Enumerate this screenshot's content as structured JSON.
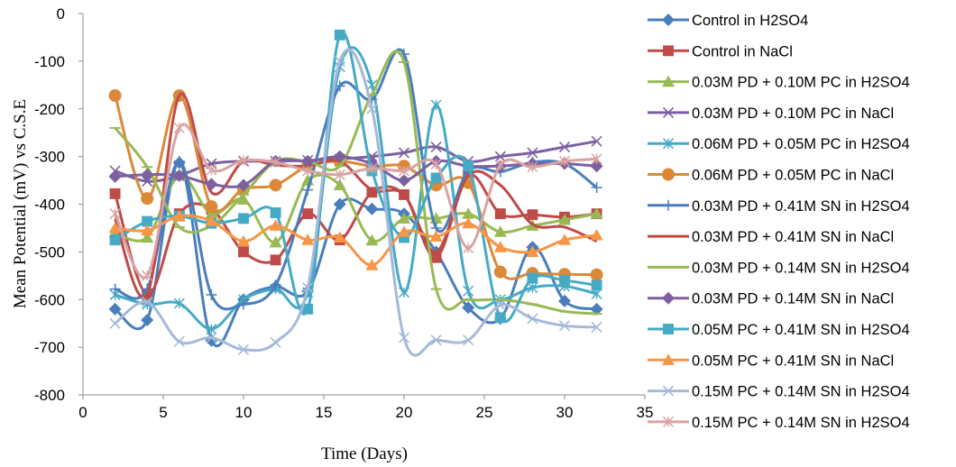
{
  "chart_data": {
    "type": "line",
    "title": "",
    "xlabel": "Time (Days)",
    "ylabel": "Mean Potential (mV) vs C.S.E",
    "xlim": [
      0,
      35
    ],
    "ylim": [
      -800,
      0
    ],
    "xticks": [
      0,
      5,
      10,
      15,
      20,
      25,
      30,
      35
    ],
    "yticks": [
      0,
      -100,
      -200,
      -300,
      -400,
      -500,
      -600,
      -700,
      -800
    ],
    "grid": false,
    "legend_position": "right",
    "x": [
      2,
      4,
      6,
      8,
      10,
      12,
      14,
      16,
      18,
      20,
      22,
      24,
      26,
      28,
      30,
      32
    ],
    "series": [
      {
        "name": "Control in H2SO4",
        "color": "#4A7EBB",
        "marker": "diamond",
        "values": [
          -620,
          -643,
          -313,
          -686,
          -600,
          -573,
          -583,
          -400,
          -410,
          -420,
          -500,
          -617,
          -640,
          -490,
          -603,
          -620
        ]
      },
      {
        "name": "Control in NaCl",
        "color": "#BE4B48",
        "marker": "square",
        "values": [
          -378,
          -590,
          -420,
          -410,
          -500,
          -517,
          -420,
          -475,
          -375,
          -380,
          -512,
          -340,
          -420,
          -422,
          -427,
          -420
        ]
      },
      {
        "name": "0.03M PD + 0.10M PC in H2SO4",
        "color": "#98B954",
        "marker": "triangle",
        "values": [
          -460,
          -470,
          -340,
          -420,
          -390,
          -480,
          -350,
          -360,
          -476,
          -430,
          -430,
          -420,
          -458,
          -445,
          -433,
          -420
        ]
      },
      {
        "name": "0.03M PD + 0.10M PC in NaCl",
        "color": "#7D60A0",
        "marker": "x",
        "values": [
          -330,
          -352,
          -340,
          -315,
          -310,
          -310,
          -308,
          -305,
          -300,
          -292,
          -280,
          -310,
          -300,
          -292,
          -280,
          -268
        ]
      },
      {
        "name": "0.06M PD + 0.05M PC in H2SO4",
        "color": "#46AAC5",
        "marker": "asterisk",
        "values": [
          -590,
          -610,
          -608,
          -662,
          -600,
          -578,
          -585,
          -112,
          -150,
          -585,
          -192,
          -582,
          -600,
          -575,
          -572,
          -588
        ]
      },
      {
        "name": "0.06M PD + 0.05M PC in NaCl",
        "color": "#DB8938",
        "marker": "circle",
        "values": [
          -172,
          -388,
          -172,
          -405,
          -368,
          -360,
          -320,
          -310,
          -320,
          -320,
          -360,
          -355,
          -542,
          -545,
          -547,
          -548
        ]
      },
      {
        "name": "0.03M PD + 0.41M SN in H2SO4",
        "color": "#4A7EBB",
        "marker": "plus",
        "values": [
          -578,
          -578,
          -310,
          -590,
          -610,
          -570,
          -370,
          -152,
          -180,
          -85,
          -450,
          -330,
          -332,
          -312,
          -315,
          -365
        ]
      },
      {
        "name": "0.03M PD + 0.41M SN in NaCl",
        "color": "#BE4B48",
        "marker": "none",
        "values": [
          -430,
          -590,
          -172,
          -375,
          -310,
          -318,
          -320,
          -310,
          -370,
          -380,
          -500,
          -340,
          -360,
          -442,
          -448,
          -478
        ]
      },
      {
        "name": "0.03M PD + 0.14M SN in H2SO4",
        "color": "#98B954",
        "marker": "dash",
        "values": [
          -240,
          -322,
          -448,
          -445,
          -380,
          -310,
          -310,
          -320,
          -170,
          -102,
          -578,
          -600,
          -600,
          -610,
          -625,
          -630
        ]
      },
      {
        "name": "0.03M PD + 0.14M SN in NaCl",
        "color": "#7D60A0",
        "marker": "diamond",
        "values": [
          -342,
          -338,
          -340,
          -358,
          -360,
          -310,
          -310,
          -300,
          -315,
          -350,
          -310,
          -320,
          -320,
          -315,
          -315,
          -320
        ]
      },
      {
        "name": "0.05M PC + 0.41M SN in H2SO4",
        "color": "#46AAC5",
        "marker": "square",
        "values": [
          -475,
          -436,
          -425,
          -440,
          -430,
          -418,
          -620,
          -45,
          -330,
          -470,
          -345,
          -320,
          -638,
          -555,
          -560,
          -570
        ]
      },
      {
        "name": "0.05M PC + 0.41M SN in NaCl",
        "color": "#F79646",
        "marker": "triangle",
        "values": [
          -450,
          -455,
          -425,
          -435,
          -478,
          -445,
          -475,
          -470,
          -528,
          -458,
          -468,
          -440,
          -490,
          -500,
          -475,
          -465
        ]
      },
      {
        "name": "0.15M PC + 0.14M SN in H2SO4",
        "color": "#A5B9DA",
        "marker": "x",
        "values": [
          -650,
          -605,
          -688,
          -680,
          -705,
          -690,
          -575,
          -100,
          -200,
          -680,
          -685,
          -685,
          -612,
          -640,
          -655,
          -658
        ]
      },
      {
        "name": "0.15M PC + 0.14M SN in H2SO4",
        "color": "#D9A3A1",
        "marker": "asterisk",
        "values": [
          -420,
          -550,
          -240,
          -328,
          -308,
          -312,
          -330,
          -338,
          -325,
          -330,
          -316,
          -492,
          -318,
          -322,
          -310,
          -305
        ]
      }
    ]
  }
}
